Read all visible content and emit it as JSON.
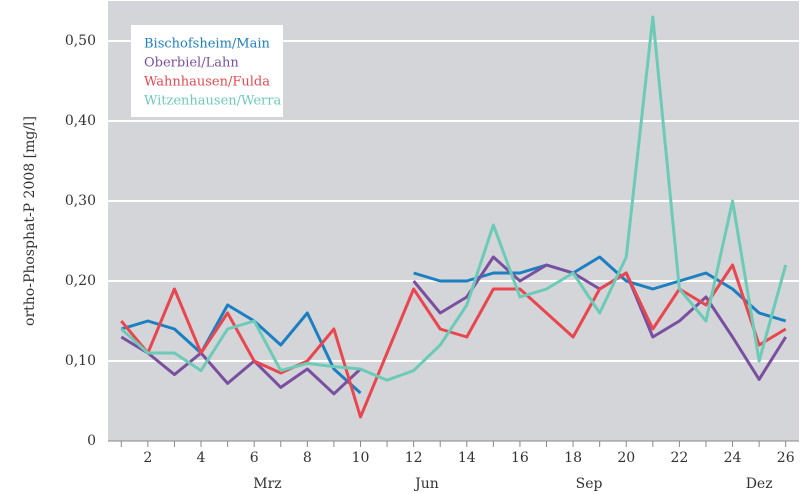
{
  "chart_data": {
    "type": "line",
    "y_label": "ortho-Phosphat-P 2008  [mg/l]",
    "x": [
      1,
      2,
      3,
      4,
      5,
      6,
      7,
      8,
      9,
      10,
      11,
      12,
      13,
      14,
      15,
      16,
      17,
      18,
      19,
      20,
      21,
      22,
      23,
      24,
      25,
      26
    ],
    "xlim": [
      0.5,
      26.5
    ],
    "xticks": [
      2,
      4,
      6,
      8,
      10,
      12,
      14,
      16,
      18,
      20,
      22,
      24,
      26
    ],
    "month_ticks": [
      {
        "value": 6.5,
        "label": "Mrz"
      },
      {
        "value": 12.5,
        "label": "Jun"
      },
      {
        "value": 18.6,
        "label": "Sep"
      },
      {
        "value": 25,
        "label": "Dez"
      }
    ],
    "ylim": [
      0,
      0.55
    ],
    "yticks": [
      0,
      {
        "value": 0.1,
        "label": "0,10"
      },
      {
        "value": 0.2,
        "label": "0,20"
      },
      {
        "value": 0.3,
        "label": "0,30"
      },
      {
        "value": 0.4,
        "label": "0,40"
      },
      {
        "value": 0.5,
        "label": "0,50"
      }
    ],
    "grid": true,
    "legend": "upper left",
    "series": [
      {
        "name": "Bischofsheim/Main",
        "color": "#1b7fc2",
        "values": [
          0.14,
          0.15,
          0.14,
          0.11,
          0.17,
          0.15,
          0.12,
          0.16,
          0.09,
          0.06,
          null,
          0.21,
          0.2,
          0.2,
          0.21,
          0.21,
          0.22,
          0.21,
          0.23,
          0.2,
          0.19,
          0.2,
          0.21,
          0.19,
          0.16,
          0.15
        ]
      },
      {
        "name": "Oberbiel/Lahn",
        "color": "#7b4fa0",
        "values": [
          0.13,
          0.11,
          0.083,
          0.11,
          0.072,
          0.1,
          0.067,
          0.09,
          0.059,
          0.09,
          null,
          0.2,
          0.16,
          0.18,
          0.23,
          0.2,
          0.22,
          0.21,
          0.19,
          0.21,
          0.13,
          0.15,
          0.18,
          0.13,
          0.077,
          0.13
        ]
      },
      {
        "name": "Wahnhausen/Fulda",
        "color": "#e8474f",
        "values": [
          0.15,
          0.11,
          0.19,
          0.11,
          0.16,
          0.1,
          0.085,
          0.1,
          0.14,
          0.03,
          0.11,
          0.19,
          0.14,
          0.13,
          0.19,
          0.19,
          0.16,
          0.13,
          0.19,
          0.21,
          0.14,
          0.19,
          0.17,
          0.22,
          0.12,
          0.14
        ]
      },
      {
        "name": "Witzenhausen/Werra",
        "color": "#6ccbb7",
        "values": [
          0.14,
          0.11,
          0.11,
          0.088,
          0.14,
          0.15,
          0.088,
          0.097,
          0.093,
          0.09,
          0.076,
          0.088,
          0.12,
          0.17,
          0.27,
          0.18,
          0.19,
          0.21,
          0.16,
          0.23,
          0.53,
          0.19,
          0.15,
          0.3,
          0.1,
          0.22
        ]
      }
    ]
  }
}
